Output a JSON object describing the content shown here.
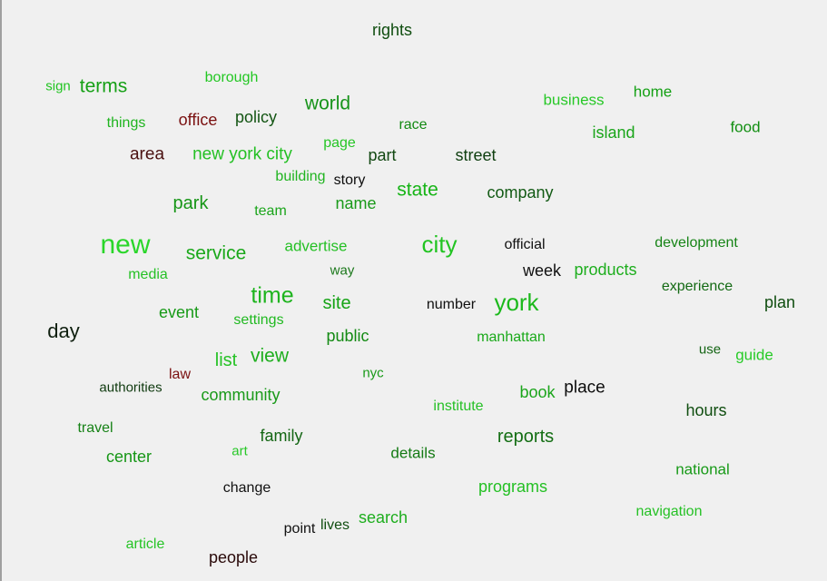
{
  "words": [
    {
      "text": "rights",
      "color": "#0f4d0f"
    },
    {
      "text": "sign",
      "color": "#21c421"
    },
    {
      "text": "terms",
      "color": "#16a016"
    },
    {
      "text": "borough",
      "color": "#23c723"
    },
    {
      "text": "things",
      "color": "#1fb41f"
    },
    {
      "text": "office",
      "color": "#7a1010"
    },
    {
      "text": "policy",
      "color": "#135513"
    },
    {
      "text": "world",
      "color": "#17931a"
    },
    {
      "text": "race",
      "color": "#138a13"
    },
    {
      "text": "business",
      "color": "#28c828"
    },
    {
      "text": "home",
      "color": "#14a014"
    },
    {
      "text": "island",
      "color": "#1aa51a"
    },
    {
      "text": "food",
      "color": "#128f12"
    },
    {
      "text": "area",
      "color": "#4a1010"
    },
    {
      "text": "new york city",
      "color": "#24c024"
    },
    {
      "text": "page",
      "color": "#26c626"
    },
    {
      "text": "part",
      "color": "#124812"
    },
    {
      "text": "street",
      "color": "#0f3f10"
    },
    {
      "text": "building",
      "color": "#20b420"
    },
    {
      "text": "story",
      "color": "#0d0d0d"
    },
    {
      "text": "state",
      "color": "#16b416"
    },
    {
      "text": "company",
      "color": "#125a14"
    },
    {
      "text": "park",
      "color": "#169616"
    },
    {
      "text": "team",
      "color": "#1ba51b"
    },
    {
      "text": "name",
      "color": "#1a9a1a"
    },
    {
      "text": "new",
      "color": "#2ad62a"
    },
    {
      "text": "service",
      "color": "#1aa81a"
    },
    {
      "text": "advertise",
      "color": "#25c025"
    },
    {
      "text": "city",
      "color": "#22c422"
    },
    {
      "text": "official",
      "color": "#111111"
    },
    {
      "text": "development",
      "color": "#168416"
    },
    {
      "text": "media",
      "color": "#26c126"
    },
    {
      "text": "way",
      "color": "#1b781b"
    },
    {
      "text": "week",
      "color": "#111111"
    },
    {
      "text": "products",
      "color": "#1eae1e"
    },
    {
      "text": "experience",
      "color": "#146a14"
    },
    {
      "text": "time",
      "color": "#1eb41e"
    },
    {
      "text": "plan",
      "color": "#0f4d0f"
    },
    {
      "text": "site",
      "color": "#16a316"
    },
    {
      "text": "number",
      "color": "#111111"
    },
    {
      "text": "york",
      "color": "#1cb91c"
    },
    {
      "text": "event",
      "color": "#179a17"
    },
    {
      "text": "settings",
      "color": "#21b921"
    },
    {
      "text": "day",
      "color": "#0f1f0f"
    },
    {
      "text": "public",
      "color": "#138a13"
    },
    {
      "text": "manhattan",
      "color": "#1aa91a"
    },
    {
      "text": "use",
      "color": "#146414"
    },
    {
      "text": "guide",
      "color": "#27cb27"
    },
    {
      "text": "list",
      "color": "#26c226"
    },
    {
      "text": "view",
      "color": "#1eae1e"
    },
    {
      "text": "law",
      "color": "#7a1010"
    },
    {
      "text": "nyc",
      "color": "#1a9a1a"
    },
    {
      "text": "authorities",
      "color": "#0f3a0f"
    },
    {
      "text": "community",
      "color": "#1a9a1a"
    },
    {
      "text": "institute",
      "color": "#25c025"
    },
    {
      "text": "book",
      "color": "#1aa51a"
    },
    {
      "text": "place",
      "color": "#0d0d0d"
    },
    {
      "text": "hours",
      "color": "#0f4d0f"
    },
    {
      "text": "travel",
      "color": "#168216"
    },
    {
      "text": "family",
      "color": "#146614"
    },
    {
      "text": "reports",
      "color": "#146e14"
    },
    {
      "text": "center",
      "color": "#169616"
    },
    {
      "text": "art",
      "color": "#28c828"
    },
    {
      "text": "details",
      "color": "#147a14"
    },
    {
      "text": "national",
      "color": "#189a18"
    },
    {
      "text": "change",
      "color": "#111111"
    },
    {
      "text": "programs",
      "color": "#24c024"
    },
    {
      "text": "search",
      "color": "#1eae1e"
    },
    {
      "text": "navigation",
      "color": "#26c126"
    },
    {
      "text": "point",
      "color": "#111111"
    },
    {
      "text": "lives",
      "color": "#0f4d0f"
    },
    {
      "text": "article",
      "color": "#26c426"
    },
    {
      "text": "people",
      "color": "#2a0a0a"
    }
  ]
}
